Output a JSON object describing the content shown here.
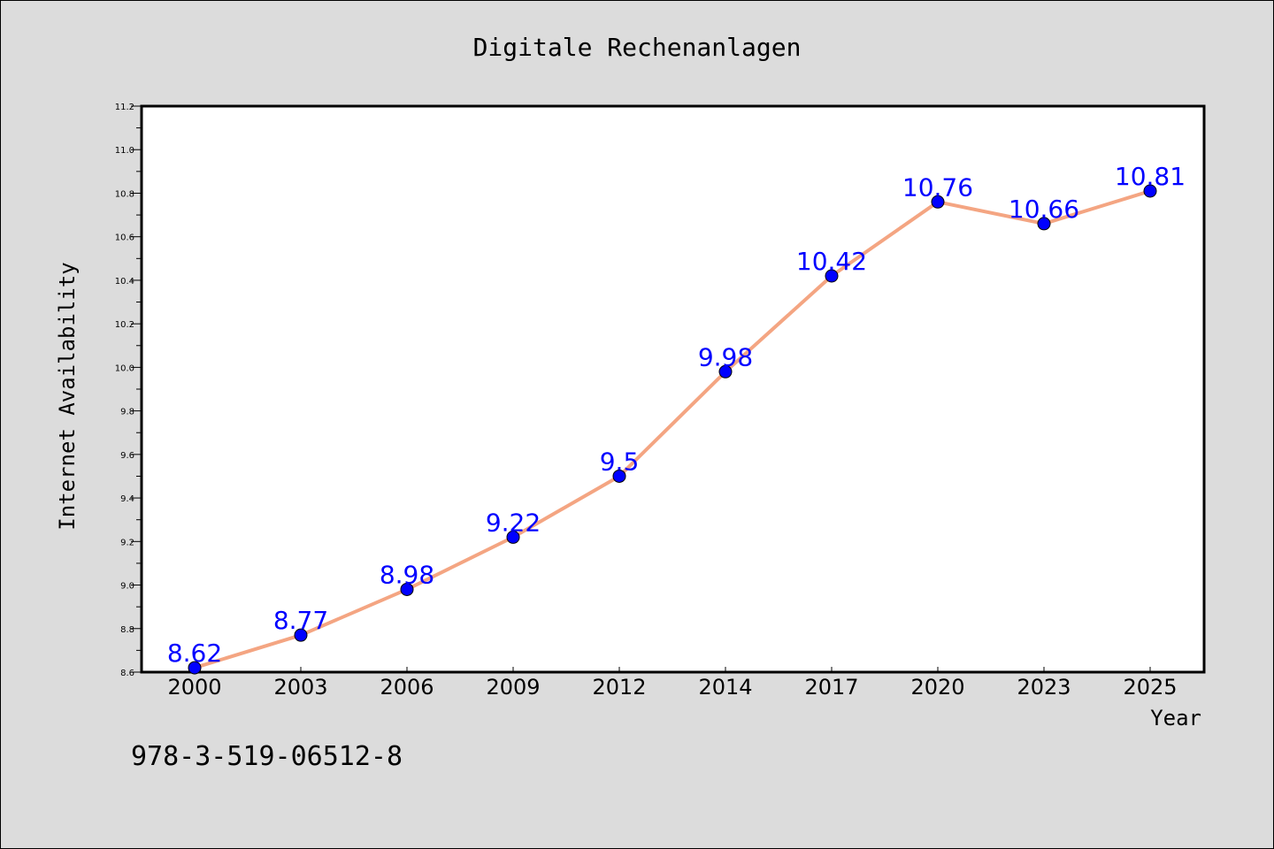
{
  "chart_data": {
    "type": "line",
    "title": "Digitale Rechenanlagen",
    "xlabel": "Year",
    "ylabel": "Internet Availability",
    "categories": [
      "2000",
      "2003",
      "2006",
      "2009",
      "2012",
      "2014",
      "2017",
      "2020",
      "2023",
      "2025"
    ],
    "series": [
      {
        "values": [
          8.62,
          8.77,
          8.98,
          9.22,
          9.5,
          9.98,
          10.42,
          10.76,
          10.66,
          10.81
        ],
        "data_labels": [
          "8.62",
          "8.77",
          "8.98",
          "9.22",
          "9.5",
          "9.98",
          "10.42",
          "10.76",
          "10.66",
          "10.81"
        ]
      }
    ],
    "ylim": [
      8.6,
      11.2
    ],
    "yticks": [
      "8.6",
      "8.8",
      "9.0",
      "9.2",
      "9.4",
      "9.6",
      "9.8",
      "10.0",
      "10.2",
      "10.4",
      "10.6",
      "10.8",
      "11.0",
      "11.2"
    ],
    "grid": false,
    "legend": false,
    "colors": {
      "line": "#f4a582",
      "marker": "#0000ff",
      "label": "#0000ff",
      "background": "#dcdcdc",
      "plot_area": "#ffffff"
    }
  },
  "annotation": "978-3-519-06512-8"
}
